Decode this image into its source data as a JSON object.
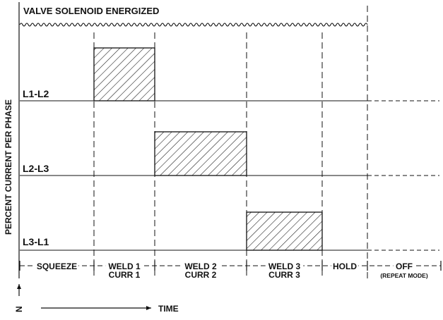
{
  "title": "VALVE SOLENOID ENERGIZED",
  "y_axis_label": "PERCENT CURRENT PER PHASE",
  "x_axis_label": "TIME",
  "n_label": "N",
  "phases": [
    {
      "label": "L1-L2"
    },
    {
      "label": "L2-L3"
    },
    {
      "label": "L3-L1"
    }
  ],
  "intervals": [
    {
      "lines": [
        "SQUEEZE"
      ]
    },
    {
      "lines": [
        "WELD 1",
        "CURR 1"
      ]
    },
    {
      "lines": [
        "WELD 2",
        "CURR 2"
      ]
    },
    {
      "lines": [
        "WELD 3",
        "CURR 3"
      ]
    },
    {
      "lines": [
        "HOLD"
      ]
    },
    {
      "lines": [
        "OFF",
        "(REPEAT MODE)"
      ]
    }
  ],
  "colors": {
    "ink": "#111111",
    "background": "#ffffff"
  }
}
